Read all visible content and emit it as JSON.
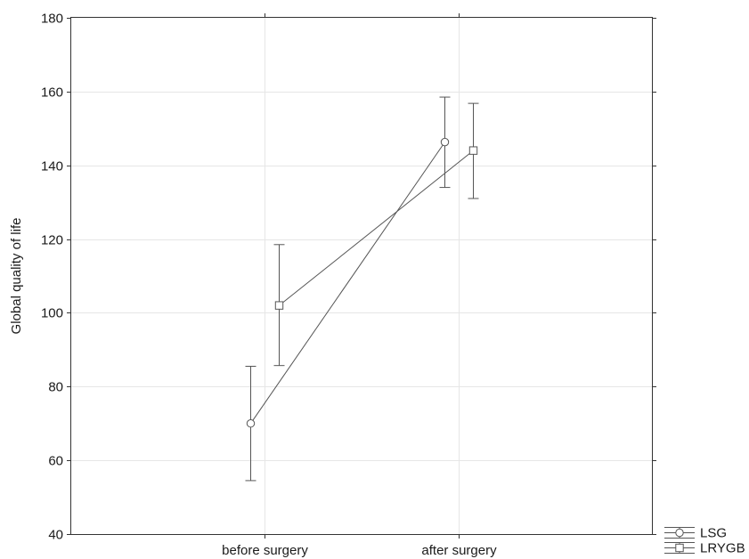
{
  "chart_data": {
    "type": "line",
    "title": "",
    "xlabel": "",
    "ylabel": "Global quality of life",
    "categories": [
      "before surgery",
      "after surgery"
    ],
    "ylim": [
      40,
      180
    ],
    "yticks": [
      40,
      60,
      80,
      100,
      120,
      140,
      160,
      180
    ],
    "grid": true,
    "legend_position": "bottom-right",
    "line_color": "#555555",
    "series": [
      {
        "name": "LSG",
        "marker": "circle",
        "values": [
          70,
          146.3
        ],
        "lower": [
          54.5,
          134
        ],
        "upper": [
          85.5,
          158.5
        ]
      },
      {
        "name": "LRYGB",
        "marker": "square",
        "values": [
          102,
          144
        ],
        "lower": [
          85.7,
          131
        ],
        "upper": [
          118.5,
          156.8
        ]
      }
    ]
  }
}
